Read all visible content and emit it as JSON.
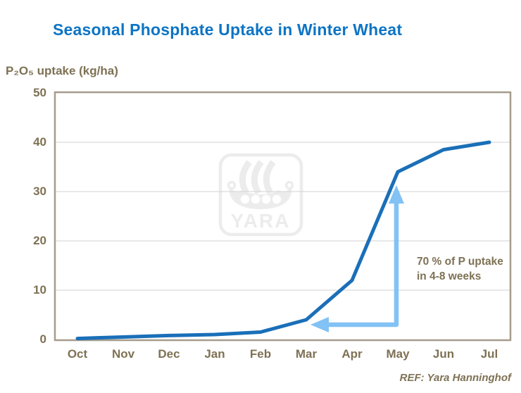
{
  "title": {
    "text": "Seasonal Phosphate Uptake in Winter Wheat",
    "color": "#0c74c5"
  },
  "footer": {
    "ref": "REF: Yara Hanninghof"
  },
  "watermark": {
    "text": "YARA",
    "color": "#ececec"
  },
  "colors": {
    "title_blue": "#0c74c5",
    "curve_blue": "#1a6fb8",
    "arrow_light_blue": "#82c2f5",
    "label_olive": "#7e7154",
    "plot_border": "#a59c8d",
    "gridline": "#d9d9d9"
  },
  "chart_data": {
    "type": "line",
    "title": "Seasonal Phosphate Uptake in Winter Wheat",
    "xlabel": "",
    "ylabel": "P₂O₅ uptake (kg/ha)",
    "categories": [
      "Oct",
      "Nov",
      "Dec",
      "Jan",
      "Feb",
      "Mar",
      "Apr",
      "May",
      "Jun",
      "Jul"
    ],
    "values": [
      0.2,
      0.5,
      0.8,
      1,
      1.5,
      4,
      12,
      34,
      38.5,
      40
    ],
    "series_name": "P2O5 uptake (kg/ha)",
    "ylim": [
      0,
      50
    ],
    "y_ticks": [
      0,
      10,
      20,
      30,
      40,
      50
    ],
    "grid": "horizontal",
    "legend": "none",
    "line_color": "#1a6fb8",
    "annotation": {
      "text": "70 % of P uptake in 4-8 weeks",
      "arrow_color": "#82c2f5",
      "arrow": {
        "vertical_month": "May",
        "vertical_from_value": 3,
        "vertical_to_value": 33,
        "horizontal_value": 3,
        "horizontal_to_month": "Mar"
      }
    }
  }
}
